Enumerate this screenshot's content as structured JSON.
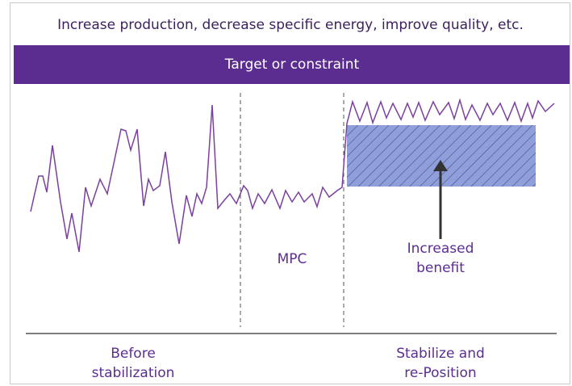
{
  "header": {
    "title": "Increase production, decrease specific energy, improve quality, etc."
  },
  "banner": {
    "label": "Target or constraint"
  },
  "labels": {
    "mpc": "MPC",
    "benefit": [
      "Increased",
      "benefit"
    ],
    "before": [
      "Before",
      "stabilization"
    ],
    "after": [
      "Stabilize and",
      "re-Position"
    ]
  }
}
